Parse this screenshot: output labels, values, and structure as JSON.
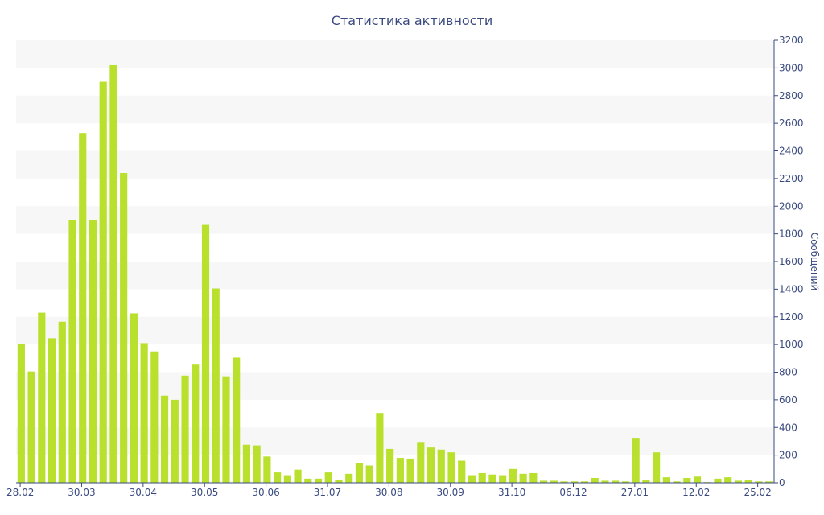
{
  "chart_data": {
    "type": "bar",
    "title": "Статистика активности",
    "ylabel": "Сообщений",
    "ylim": [
      0,
      3200
    ],
    "y_ticks": [
      0,
      200,
      400,
      600,
      800,
      1000,
      1200,
      1400,
      1600,
      1800,
      2000,
      2200,
      2400,
      2600,
      2800,
      3000,
      3200
    ],
    "y_axis_side": "right",
    "x_tick_labels": [
      "28.02",
      "30.03",
      "30.04",
      "30.05",
      "30.06",
      "31.07",
      "30.08",
      "30.09",
      "31.10",
      "06.12",
      "27.01",
      "12.02",
      "25.02"
    ],
    "x_tick_bar_index": [
      0,
      6,
      12,
      18,
      24,
      30,
      36,
      42,
      48,
      54,
      60,
      66,
      72
    ],
    "bar_color": "#b8e02c",
    "values": [
      1005,
      805,
      1230,
      1045,
      1165,
      1900,
      2530,
      1900,
      2900,
      3020,
      2240,
      1225,
      1010,
      950,
      630,
      600,
      775,
      860,
      1870,
      1405,
      770,
      905,
      275,
      270,
      190,
      75,
      55,
      95,
      30,
      30,
      75,
      20,
      65,
      145,
      125,
      505,
      245,
      180,
      175,
      295,
      255,
      240,
      220,
      160,
      55,
      70,
      60,
      55,
      100,
      65,
      70,
      15,
      15,
      10,
      10,
      10,
      35,
      15,
      15,
      10,
      325,
      20,
      220,
      40,
      10,
      35,
      45,
      5,
      30,
      40,
      15,
      20,
      10,
      10
    ]
  }
}
